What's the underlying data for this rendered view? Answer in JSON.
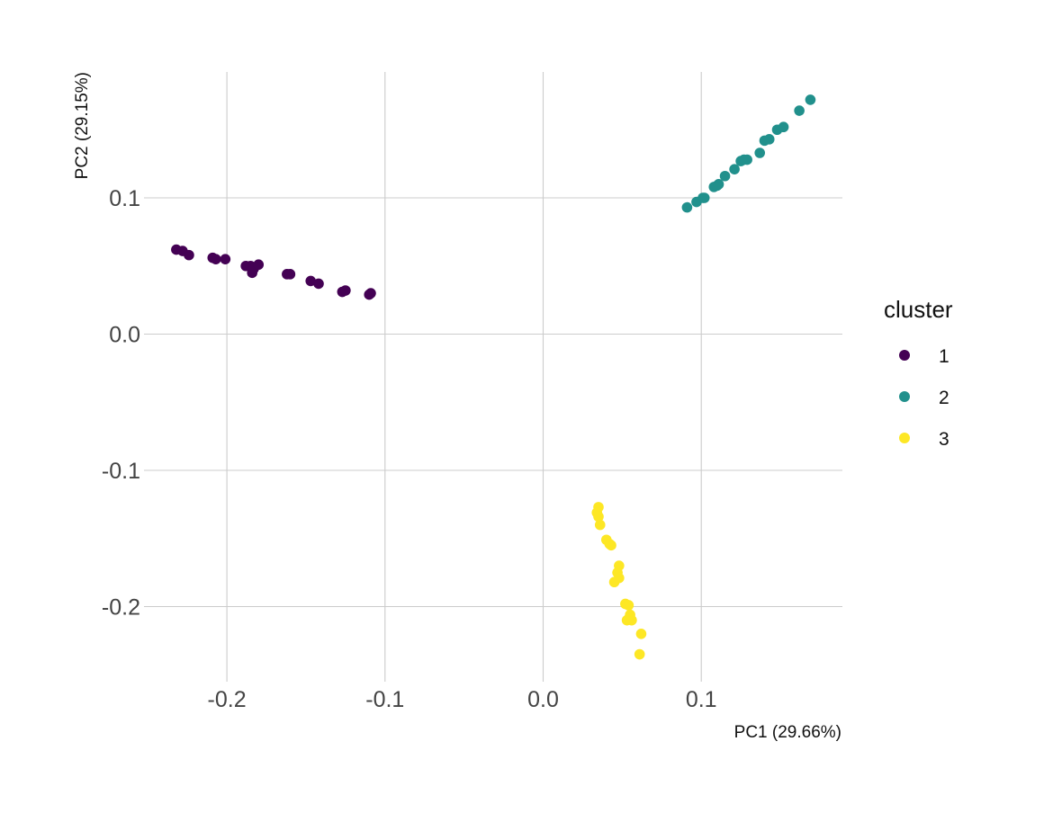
{
  "chart_data": {
    "type": "scatter",
    "xlabel": "PC1 (29.66%)",
    "ylabel": "PC2 (29.15%)",
    "xlim": [
      -0.25,
      0.19
    ],
    "ylim": [
      -0.255,
      0.19
    ],
    "x_ticks": [
      -0.2,
      -0.1,
      0.0,
      0.1
    ],
    "x_tick_labels": [
      "-0.2",
      "-0.1",
      "0.0",
      "0.1"
    ],
    "y_ticks": [
      0.1,
      0.0,
      -0.1,
      -0.2
    ],
    "y_tick_labels": [
      "0.1",
      "0.0",
      "-0.1",
      "-0.2"
    ],
    "grid": true,
    "legend": {
      "title": "cluster",
      "position": "right"
    },
    "series": [
      {
        "name": "1",
        "color": "#440154",
        "points": [
          [
            -0.232,
            0.062
          ],
          [
            -0.228,
            0.061
          ],
          [
            -0.224,
            0.058
          ],
          [
            -0.209,
            0.056
          ],
          [
            -0.207,
            0.055
          ],
          [
            -0.201,
            0.055
          ],
          [
            -0.188,
            0.05
          ],
          [
            -0.185,
            0.05
          ],
          [
            -0.184,
            0.045
          ],
          [
            -0.183,
            0.048
          ],
          [
            -0.18,
            0.051
          ],
          [
            -0.162,
            0.044
          ],
          [
            -0.16,
            0.044
          ],
          [
            -0.147,
            0.039
          ],
          [
            -0.142,
            0.037
          ],
          [
            -0.127,
            0.031
          ],
          [
            -0.125,
            0.032
          ],
          [
            -0.11,
            0.029
          ],
          [
            -0.109,
            0.03
          ]
        ]
      },
      {
        "name": "2",
        "color": "#21908C",
        "points": [
          [
            0.091,
            0.093
          ],
          [
            0.097,
            0.097
          ],
          [
            0.101,
            0.1
          ],
          [
            0.102,
            0.1
          ],
          [
            0.108,
            0.108
          ],
          [
            0.11,
            0.109
          ],
          [
            0.111,
            0.11
          ],
          [
            0.115,
            0.116
          ],
          [
            0.121,
            0.121
          ],
          [
            0.125,
            0.127
          ],
          [
            0.127,
            0.128
          ],
          [
            0.129,
            0.128
          ],
          [
            0.137,
            0.133
          ],
          [
            0.14,
            0.142
          ],
          [
            0.143,
            0.143
          ],
          [
            0.148,
            0.15
          ],
          [
            0.152,
            0.152
          ],
          [
            0.162,
            0.164
          ],
          [
            0.169,
            0.172
          ]
        ]
      },
      {
        "name": "3",
        "color": "#FDE725",
        "points": [
          [
            0.035,
            -0.127
          ],
          [
            0.034,
            -0.131
          ],
          [
            0.035,
            -0.134
          ],
          [
            0.036,
            -0.14
          ],
          [
            0.04,
            -0.151
          ],
          [
            0.042,
            -0.154
          ],
          [
            0.043,
            -0.155
          ],
          [
            0.048,
            -0.17
          ],
          [
            0.047,
            -0.175
          ],
          [
            0.048,
            -0.179
          ],
          [
            0.045,
            -0.182
          ],
          [
            0.052,
            -0.198
          ],
          [
            0.054,
            -0.199
          ],
          [
            0.055,
            -0.206
          ],
          [
            0.054,
            -0.209
          ],
          [
            0.056,
            -0.21
          ],
          [
            0.053,
            -0.21
          ],
          [
            0.062,
            -0.22
          ],
          [
            0.061,
            -0.235
          ]
        ]
      }
    ]
  }
}
